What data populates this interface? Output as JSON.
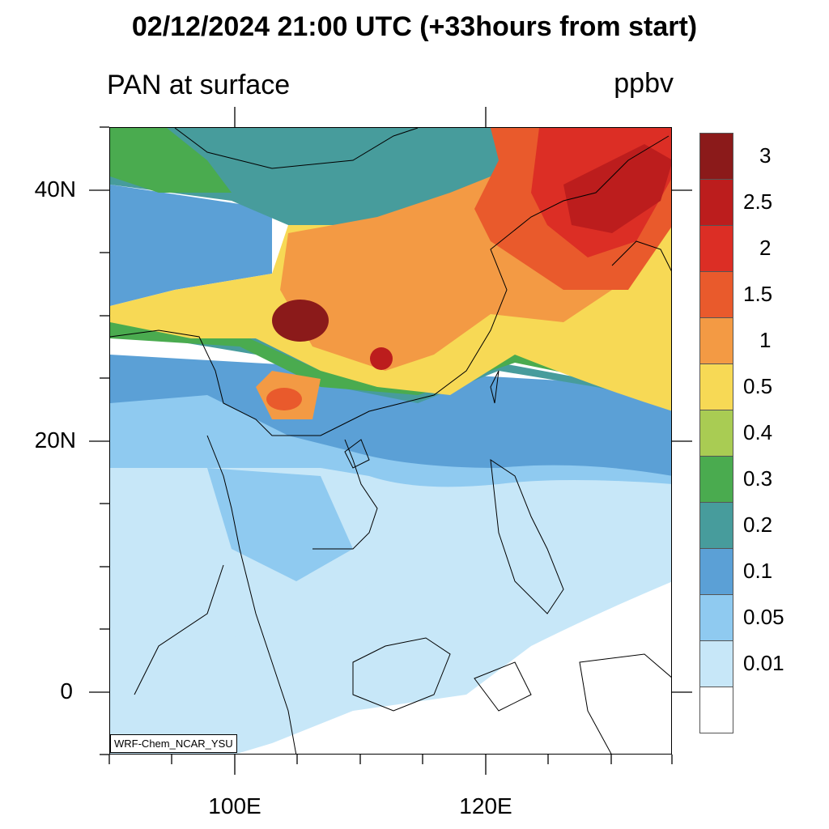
{
  "title": "02/12/2024 21:00 UTC (+33hours from start)",
  "subtitle_left": "PAN at surface",
  "subtitle_right": "ppbv",
  "lat_labels": [
    "40N",
    "20N",
    "0"
  ],
  "lon_labels": [
    "100E",
    "120E"
  ],
  "credit": "WRF-Chem_NCAR_YSU",
  "colorbar": {
    "colors": [
      "#8b1a1a",
      "#bc1d1d",
      "#dc2e25",
      "#e95a2c",
      "#f39a44",
      "#f7d955",
      "#a9cc53",
      "#4aab4f",
      "#479c9c",
      "#5ba0d6",
      "#8fcaf0",
      "#c7e7f8",
      "#ffffff"
    ],
    "labels": [
      "3",
      "2.5",
      "2",
      "1.5",
      "1",
      "0.5",
      "0.4",
      "0.3",
      "0.2",
      "0.1",
      "0.05",
      "0.01"
    ]
  },
  "field_levels_ppbv": [
    0.01,
    0.05,
    0.1,
    0.2,
    0.3,
    0.4,
    0.5,
    1,
    1.5,
    2,
    2.5,
    3
  ]
}
